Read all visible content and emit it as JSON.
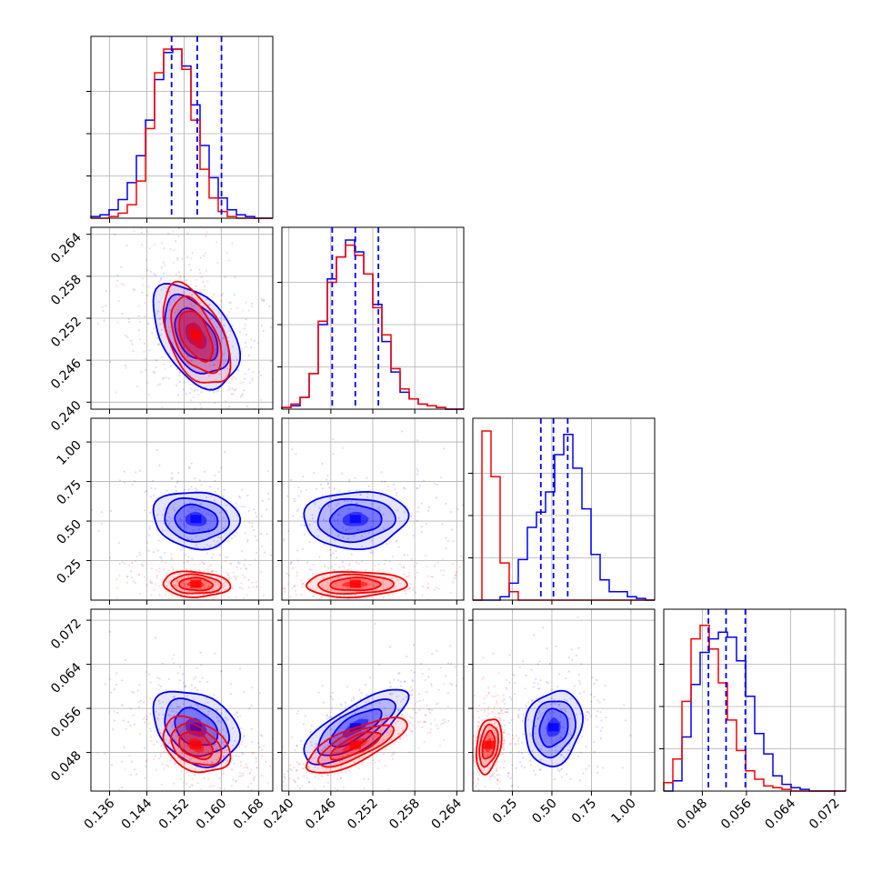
{
  "chart_data": {
    "type": "corner",
    "dimensions": 4,
    "grid": true,
    "legend": "none",
    "colors": {
      "series_a": "#0000ff",
      "series_b": "#ff0000",
      "quantiles": "#0000ff"
    },
    "series": [
      {
        "color": "#0000ff",
        "means": [
          0.1545,
          0.2495,
          0.51,
          0.0525
        ],
        "stds": [
          0.0046,
          0.0037,
          0.09,
          0.0034
        ]
      },
      {
        "color": "#ff0000",
        "means": [
          0.1545,
          0.2495,
          0.1,
          0.0493
        ],
        "stds": [
          0.0036,
          0.0036,
          0.04,
          0.0025
        ]
      }
    ],
    "axis_ranges": [
      [
        0.132,
        0.171
      ],
      [
        0.239,
        0.265
      ],
      [
        0.0,
        1.15
      ],
      [
        0.041,
        0.074
      ]
    ],
    "ticks": [
      [
        "0.136",
        "0.144",
        "0.152",
        "0.160",
        "0.168"
      ],
      [
        "0.240",
        "0.246",
        "0.252",
        "0.258",
        "0.264"
      ],
      [
        "0.25",
        "0.50",
        "0.75",
        "1.00"
      ],
      [
        "0.048",
        "0.056",
        "0.064",
        "0.072"
      ]
    ],
    "quantile_lines": [
      [
        0.1493,
        0.1548,
        0.16
      ],
      [
        0.2462,
        0.2495,
        0.2528
      ],
      [
        0.43,
        0.51,
        0.6
      ],
      [
        0.0491,
        0.0523,
        0.0558
      ]
    ],
    "histograms": [
      {
        "blue": [
          0.01,
          0.02,
          0.05,
          0.11,
          0.21,
          0.37,
          0.58,
          0.82,
          0.98,
          1.0,
          0.9,
          0.67,
          0.43,
          0.24,
          0.12,
          0.05,
          0.02,
          0.01,
          0.0,
          0.0
        ],
        "red": [
          0.0,
          0.0,
          0.01,
          0.03,
          0.08,
          0.22,
          0.53,
          0.86,
          1.0,
          1.0,
          0.88,
          0.58,
          0.29,
          0.12,
          0.04,
          0.01,
          0.0,
          0.0,
          0.0,
          0.0
        ]
      },
      {
        "blue": [
          0.01,
          0.02,
          0.07,
          0.21,
          0.5,
          0.77,
          0.9,
          1.0,
          0.93,
          0.8,
          0.62,
          0.4,
          0.22,
          0.1,
          0.06,
          0.03,
          0.02,
          0.01,
          0.0,
          0.0
        ],
        "red": [
          0.01,
          0.03,
          0.07,
          0.21,
          0.52,
          0.75,
          0.9,
          0.97,
          0.91,
          0.8,
          0.6,
          0.44,
          0.24,
          0.12,
          0.06,
          0.03,
          0.02,
          0.01,
          0.0,
          0.0
        ]
      },
      {
        "blue": [
          0.0,
          0.0,
          0.0,
          0.02,
          0.1,
          0.24,
          0.43,
          0.52,
          0.64,
          0.86,
          0.98,
          0.78,
          0.54,
          0.27,
          0.12,
          0.05,
          0.05,
          0.02,
          0.01,
          0.0
        ],
        "red": [
          0.0,
          1.0,
          0.73,
          0.22,
          0.05,
          0.0,
          0.0,
          0.0,
          0.0,
          0.0,
          0.0,
          0.0,
          0.0,
          0.0,
          0.0,
          0.0,
          0.0,
          0.0,
          0.0,
          0.0
        ]
      },
      {
        "blue": [
          0.0,
          0.06,
          0.32,
          0.63,
          0.82,
          0.9,
          0.94,
          0.91,
          0.77,
          0.56,
          0.34,
          0.22,
          0.09,
          0.04,
          0.02,
          0.01,
          0.0,
          0.0,
          0.0,
          0.0
        ],
        "red": [
          0.05,
          0.19,
          0.53,
          0.9,
          0.98,
          0.84,
          0.64,
          0.42,
          0.24,
          0.12,
          0.07,
          0.03,
          0.02,
          0.01,
          0.0,
          0.0,
          0.0,
          0.0,
          0.0,
          0.0
        ]
      }
    ],
    "correlations": {
      "1-0": {
        "blue": -0.45,
        "red": -0.5
      },
      "2-0": {
        "blue": -0.1,
        "red": -0.1
      },
      "2-1": {
        "blue": 0.05,
        "red": 0.05
      },
      "3-0": {
        "blue": -0.3,
        "red": -0.35
      },
      "3-1": {
        "blue": 0.75,
        "red": 0.75
      },
      "3-2": {
        "blue": 0.15,
        "red": 0.3
      }
    }
  }
}
